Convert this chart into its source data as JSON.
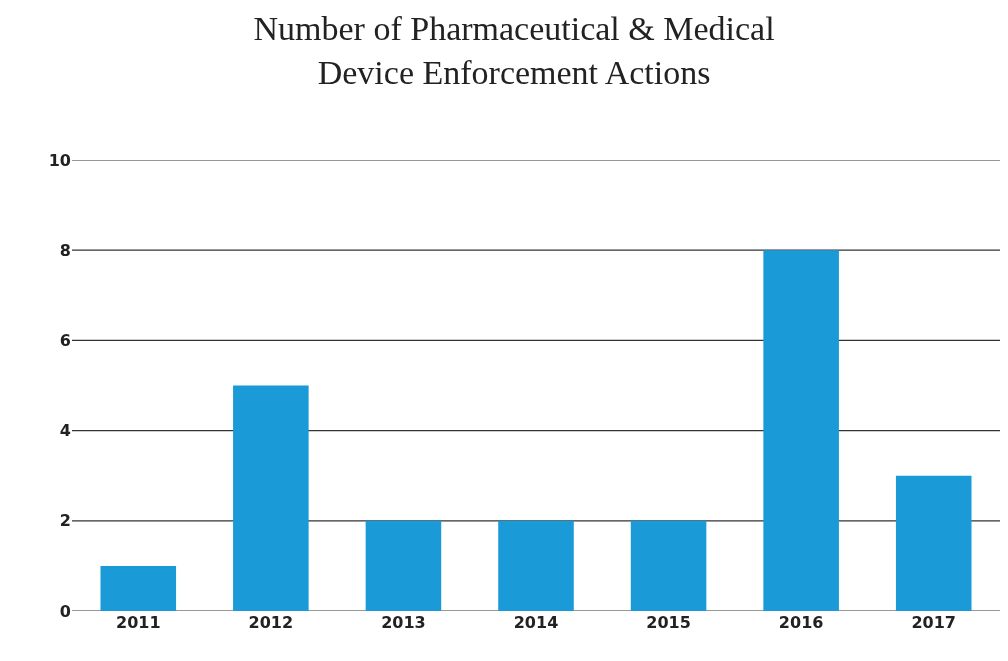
{
  "chart_data": {
    "type": "bar",
    "title": "Number of Pharmaceutical & Medical\nDevice Enforcement Actions",
    "categories": [
      "2011",
      "2012",
      "2013",
      "2014",
      "2015",
      "2016",
      "2017"
    ],
    "values": [
      1,
      5,
      2,
      2,
      2,
      8,
      3
    ],
    "color": "#1a9ad6",
    "ylim": [
      0,
      10
    ],
    "yticks": [
      0,
      2,
      4,
      6,
      8,
      10
    ],
    "grid": "y"
  }
}
